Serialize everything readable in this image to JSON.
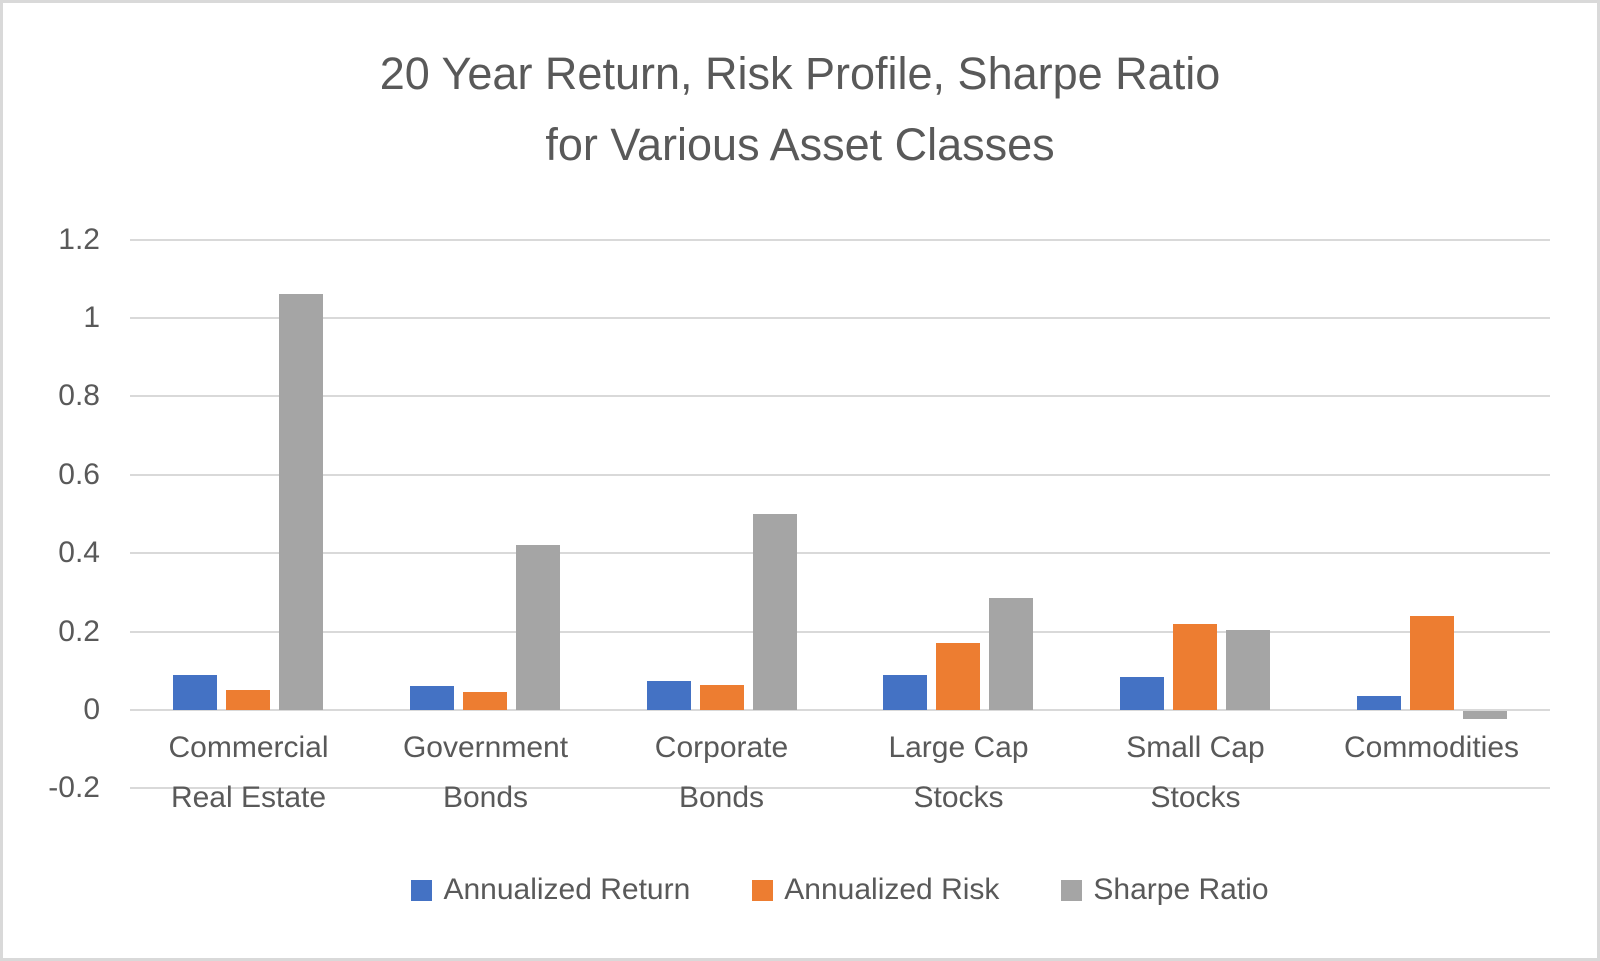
{
  "chart_data": {
    "type": "bar",
    "title": "20 Year Return, Risk Profile, Sharpe Ratio for Various Asset Classes",
    "title_lines": [
      "20 Year Return, Risk Profile, Sharpe Ratio",
      "for Various Asset Classes"
    ],
    "categories": [
      "Commercial Real Estate",
      "Government Bonds",
      "Corporate Bonds",
      "Large Cap Stocks",
      "Small Cap Stocks",
      "Commodities"
    ],
    "category_label_lines": [
      [
        "Commercial",
        "Real Estate"
      ],
      [
        "Government",
        "Bonds"
      ],
      [
        "Corporate",
        "Bonds"
      ],
      [
        "Large Cap",
        "Stocks"
      ],
      [
        "Small Cap",
        "Stocks"
      ],
      [
        "Commodities"
      ]
    ],
    "series": [
      {
        "name": "Annualized Return",
        "color": "#4472c4",
        "values": [
          0.09,
          0.06,
          0.075,
          0.09,
          0.085,
          0.035
        ]
      },
      {
        "name": "Annualized Risk",
        "color": "#ed7d31",
        "values": [
          0.05,
          0.045,
          0.065,
          0.17,
          0.22,
          0.24
        ]
      },
      {
        "name": "Sharpe Ratio",
        "color": "#a5a5a5",
        "values": [
          1.06,
          0.42,
          0.5,
          0.285,
          0.205,
          -0.02
        ]
      }
    ],
    "y_axis": {
      "min": -0.2,
      "max": 1.2,
      "tick_step": 0.2,
      "tick_labels": [
        "1.2",
        "1",
        "0.8",
        "0.6",
        "0.4",
        "0.2",
        "0",
        "-0.2"
      ]
    },
    "xlabel": "",
    "ylabel": "",
    "grid": true,
    "gridline_color": "#d9d9d9",
    "text_color": "#595959",
    "background_color": "#ffffff",
    "frame_border_color": "#d9d9d9",
    "legend_position": "bottom"
  }
}
